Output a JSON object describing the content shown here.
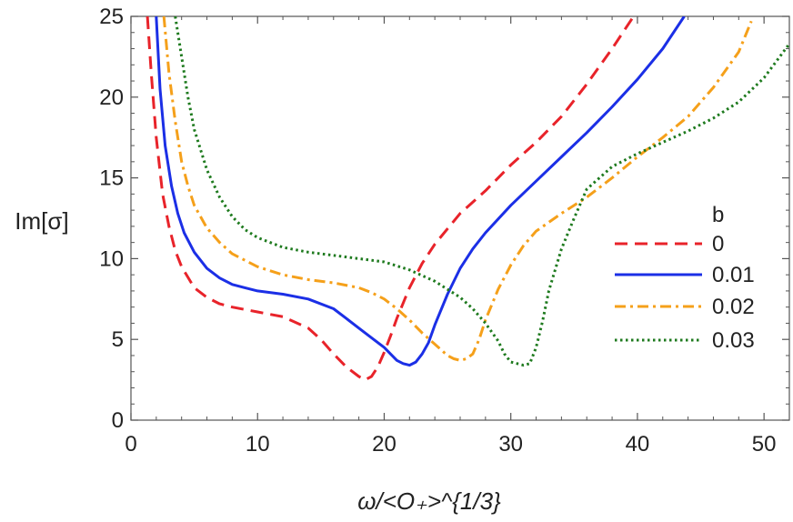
{
  "chart_data": {
    "type": "line",
    "xlabel": "ω/<O₊>^{1/3}",
    "ylabel": "Im[σ]",
    "xlim": [
      0,
      52
    ],
    "ylim": [
      0,
      25
    ],
    "x_ticks": [
      0,
      10,
      20,
      30,
      40,
      50
    ],
    "y_ticks": [
      0,
      5,
      10,
      15,
      20,
      25
    ],
    "x_tick_labels": [
      "0",
      "10",
      "20",
      "30",
      "40",
      "50"
    ],
    "y_tick_labels": [
      "0",
      "5",
      "10",
      "15",
      "20",
      "25"
    ],
    "grid": false,
    "legend": {
      "title": "b",
      "position": "right"
    },
    "series": [
      {
        "name": "0",
        "color": "#e8232a",
        "dash": "dashed",
        "x": [
          1.3,
          1.6,
          2.0,
          2.5,
          3.0,
          3.5,
          4.0,
          5.0,
          6.0,
          7.0,
          8.0,
          10.0,
          12.0,
          14.0,
          15.0,
          16.0,
          17.0,
          18.0,
          18.5,
          19.0,
          19.5,
          20.0,
          20.5,
          21.0,
          22.0,
          23.0,
          24.0,
          26.0,
          28.0,
          30.0,
          32.0,
          34.0,
          36.0,
          38.0,
          39.7
        ],
        "y": [
          25.0,
          21.5,
          17.5,
          14.0,
          12.0,
          10.5,
          9.5,
          8.2,
          7.6,
          7.2,
          7.0,
          6.7,
          6.4,
          5.7,
          5.0,
          4.1,
          3.3,
          2.7,
          2.5,
          2.7,
          3.3,
          4.2,
          5.2,
          6.3,
          8.2,
          9.7,
          10.9,
          12.8,
          14.2,
          15.8,
          17.2,
          18.8,
          20.8,
          23.0,
          25.0
        ]
      },
      {
        "name": "0.01",
        "color": "#1b2fe6",
        "dash": "solid",
        "x": [
          2.0,
          2.3,
          2.7,
          3.2,
          3.7,
          4.2,
          5.0,
          6.0,
          7.0,
          8.0,
          9.0,
          10.0,
          12.0,
          14.0,
          16.0,
          17.0,
          18.0,
          19.0,
          20.0,
          20.5,
          21.0,
          21.5,
          22.0,
          22.5,
          23.0,
          23.5,
          24.0,
          25.0,
          26.0,
          27.0,
          28.0,
          30.0,
          32.0,
          34.0,
          36.0,
          38.0,
          40.0,
          42.0,
          43.7
        ],
        "y": [
          25.0,
          20.5,
          17.0,
          14.5,
          12.8,
          11.6,
          10.4,
          9.4,
          8.8,
          8.4,
          8.2,
          8.0,
          7.8,
          7.5,
          6.9,
          6.3,
          5.7,
          5.1,
          4.5,
          4.1,
          3.7,
          3.5,
          3.4,
          3.6,
          4.1,
          4.8,
          5.9,
          7.8,
          9.4,
          10.6,
          11.6,
          13.3,
          14.8,
          16.3,
          17.8,
          19.4,
          21.1,
          23.0,
          25.0
        ]
      },
      {
        "name": "0.02",
        "color": "#f5a01a",
        "dash": "dashdot",
        "x": [
          2.6,
          3.0,
          3.5,
          4.0,
          4.5,
          5.0,
          6.0,
          7.0,
          8.0,
          10.0,
          12.0,
          14.0,
          16.0,
          18.0,
          19.0,
          20.0,
          21.0,
          22.0,
          23.0,
          24.0,
          25.0,
          25.5,
          26.0,
          26.5,
          27.0,
          27.5,
          28.0,
          29.0,
          30.0,
          31.0,
          32.0,
          34.0,
          36.0,
          38.0,
          40.0,
          42.0,
          44.0,
          46.0,
          48.0,
          49.0
        ],
        "y": [
          25.0,
          21.5,
          18.5,
          16.0,
          14.5,
          13.3,
          11.9,
          11.0,
          10.3,
          9.5,
          9.0,
          8.7,
          8.5,
          8.2,
          7.9,
          7.5,
          6.9,
          6.2,
          5.4,
          4.7,
          4.0,
          3.8,
          3.7,
          3.8,
          4.1,
          5.0,
          6.2,
          8.1,
          9.6,
          10.8,
          11.7,
          12.8,
          13.8,
          15.0,
          16.3,
          17.5,
          18.8,
          20.6,
          22.8,
          24.7
        ]
      },
      {
        "name": "0.03",
        "color": "#1e7a1e",
        "dash": "dotted",
        "x": [
          3.5,
          4.0,
          4.5,
          5.0,
          6.0,
          7.0,
          8.0,
          9.0,
          10.0,
          12.0,
          14.0,
          16.0,
          18.0,
          20.0,
          22.0,
          24.0,
          26.0,
          27.0,
          28.0,
          29.0,
          29.5,
          30.0,
          30.5,
          31.0,
          31.5,
          32.0,
          32.5,
          33.0,
          34.0,
          35.0,
          36.0,
          38.0,
          40.0,
          42.0,
          44.0,
          46.0,
          48.0,
          50.0,
          52.0
        ],
        "y": [
          25.0,
          22.5,
          20.0,
          18.0,
          15.5,
          13.8,
          12.6,
          11.8,
          11.3,
          10.7,
          10.4,
          10.2,
          10.0,
          9.8,
          9.3,
          8.6,
          7.6,
          6.9,
          6.0,
          4.9,
          4.1,
          3.6,
          3.5,
          3.4,
          3.5,
          4.5,
          6.1,
          8.0,
          10.6,
          12.5,
          14.3,
          15.7,
          16.5,
          17.2,
          17.9,
          18.7,
          19.7,
          21.2,
          23.3
        ]
      }
    ]
  }
}
